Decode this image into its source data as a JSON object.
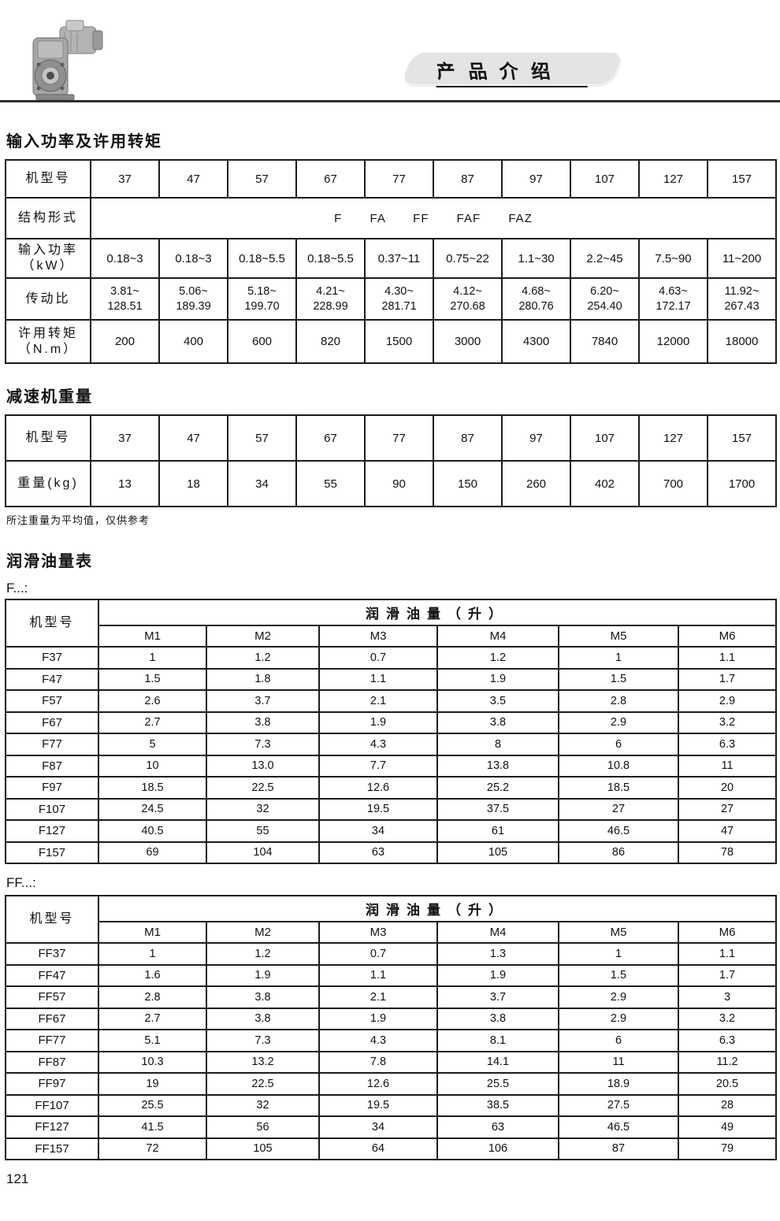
{
  "colors": {
    "banner_bg": "#e4e4e4",
    "rule": "#2e2e2e",
    "table_border": "#1c1c1c",
    "text": "#111111"
  },
  "header": {
    "banner_title": "产品介绍",
    "photo": "gear-reducer-photo"
  },
  "page": {
    "number": "121"
  },
  "sections": {
    "power_torque": {
      "title": "输入功率及许用转矩",
      "table": {
        "row_headers": [
          "机型号",
          "结构形式",
          "输入功率\n（kW）",
          "传动比",
          "许用转矩\n（N.m）"
        ],
        "models": [
          "37",
          "47",
          "57",
          "67",
          "77",
          "87",
          "97",
          "107",
          "127",
          "157"
        ],
        "structure_forms": "F FA FF FAF FAZ",
        "input_power_kw": [
          "0.18~3",
          "0.18~3",
          "0.18~5.5",
          "0.18~5.5",
          "0.37~11",
          "0.75~22",
          "1.1~30",
          "2.2~45",
          "7.5~90",
          "11~200"
        ],
        "ratio": [
          "3.81~\n128.51",
          "5.06~\n189.39",
          "5.18~\n199.70",
          "4.21~\n228.99",
          "4.30~\n281.71",
          "4.12~\n270.68",
          "4.68~\n280.76",
          "6.20~\n254.40",
          "4.63~\n172.17",
          "11.92~\n267.43"
        ],
        "torque_nm": [
          "200",
          "400",
          "600",
          "820",
          "1500",
          "3000",
          "4300",
          "7840",
          "12000",
          "18000"
        ]
      }
    },
    "weight": {
      "title": "减速机重量",
      "table": {
        "row_headers": [
          "机型号",
          "重量(kg)"
        ],
        "models": [
          "37",
          "47",
          "57",
          "67",
          "77",
          "87",
          "97",
          "107",
          "127",
          "157"
        ],
        "weights": [
          "13",
          "18",
          "34",
          "55",
          "90",
          "150",
          "260",
          "402",
          "700",
          "1700"
        ]
      },
      "note": "所注重量为平均值，仅供参考"
    },
    "lubrication": {
      "title": "润滑油量表",
      "f_label": "F...:",
      "ff_label": "FF...:",
      "col_header_left": "机型号",
      "span_header": "润滑油量（升）",
      "m_headers": [
        "M1",
        "M2",
        "M3",
        "M4",
        "M5",
        "M6"
      ],
      "f_rows": [
        {
          "model": "F37",
          "values": [
            "1",
            "1.2",
            "0.7",
            "1.2",
            "1",
            "1.1"
          ]
        },
        {
          "model": "F47",
          "values": [
            "1.5",
            "1.8",
            "1.1",
            "1.9",
            "1.5",
            "1.7"
          ]
        },
        {
          "model": "F57",
          "values": [
            "2.6",
            "3.7",
            "2.1",
            "3.5",
            "2.8",
            "2.9"
          ]
        },
        {
          "model": "F67",
          "values": [
            "2.7",
            "3.8",
            "1.9",
            "3.8",
            "2.9",
            "3.2"
          ]
        },
        {
          "model": "F77",
          "values": [
            "5",
            "7.3",
            "4.3",
            "8",
            "6",
            "6.3"
          ]
        },
        {
          "model": "F87",
          "values": [
            "10",
            "13.0",
            "7.7",
            "13.8",
            "10.8",
            "11"
          ]
        },
        {
          "model": "F97",
          "values": [
            "18.5",
            "22.5",
            "12.6",
            "25.2",
            "18.5",
            "20"
          ]
        },
        {
          "model": "F107",
          "values": [
            "24.5",
            "32",
            "19.5",
            "37.5",
            "27",
            "27"
          ]
        },
        {
          "model": "F127",
          "values": [
            "40.5",
            "55",
            "34",
            "61",
            "46.5",
            "47"
          ]
        },
        {
          "model": "F157",
          "values": [
            "69",
            "104",
            "63",
            "105",
            "86",
            "78"
          ]
        }
      ],
      "ff_rows": [
        {
          "model": "FF37",
          "values": [
            "1",
            "1.2",
            "0.7",
            "1.3",
            "1",
            "1.1"
          ]
        },
        {
          "model": "FF47",
          "values": [
            "1.6",
            "1.9",
            "1.1",
            "1.9",
            "1.5",
            "1.7"
          ]
        },
        {
          "model": "FF57",
          "values": [
            "2.8",
            "3.8",
            "2.1",
            "3.7",
            "2.9",
            "3"
          ]
        },
        {
          "model": "FF67",
          "values": [
            "2.7",
            "3.8",
            "1.9",
            "3.8",
            "2.9",
            "3.2"
          ]
        },
        {
          "model": "FF77",
          "values": [
            "5.1",
            "7.3",
            "4.3",
            "8.1",
            "6",
            "6.3"
          ]
        },
        {
          "model": "FF87",
          "values": [
            "10.3",
            "13.2",
            "7.8",
            "14.1",
            "11",
            "11.2"
          ]
        },
        {
          "model": "FF97",
          "values": [
            "19",
            "22.5",
            "12.6",
            "25.5",
            "18.9",
            "20.5"
          ]
        },
        {
          "model": "FF107",
          "values": [
            "25.5",
            "32",
            "19.5",
            "38.5",
            "27.5",
            "28"
          ]
        },
        {
          "model": "FF127",
          "values": [
            "41.5",
            "56",
            "34",
            "63",
            "46.5",
            "49"
          ]
        },
        {
          "model": "FF157",
          "values": [
            "72",
            "105",
            "64",
            "106",
            "87",
            "79"
          ]
        }
      ]
    }
  }
}
